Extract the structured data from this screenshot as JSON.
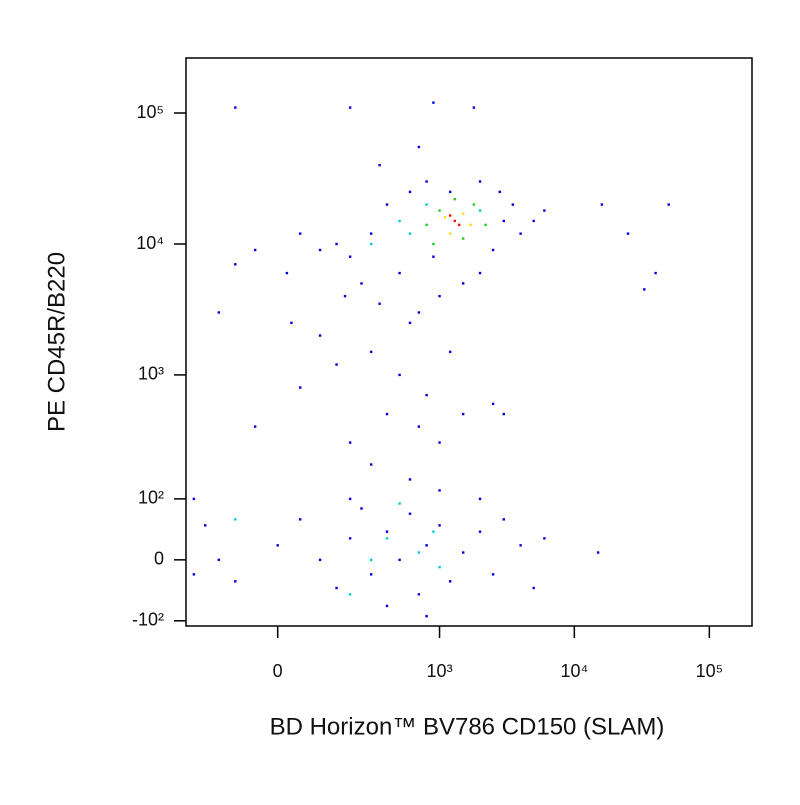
{
  "chart_data": {
    "type": "scatter",
    "x_label": "BD Horizon™ BV786 CD150 (SLAM)",
    "y_label": "PE CD45R/B220",
    "xscale": "biexponential",
    "yscale": "biexponential",
    "xlim": [
      -290,
      207000
    ],
    "ylim": [
      -112,
      263000
    ],
    "xticks": [
      0,
      {
        "value": 1000,
        "label": "10³"
      },
      {
        "value": 10000,
        "label": "10⁴"
      },
      {
        "value": 100000,
        "label": "10⁵"
      }
    ],
    "yticks": [
      {
        "value": -100,
        "label": "-10²"
      },
      0,
      {
        "value": 100,
        "label": "10²"
      },
      {
        "value": 1000,
        "label": "10³"
      },
      {
        "value": 10000,
        "label": "10⁴"
      },
      {
        "value": 100000,
        "label": "10⁵"
      }
    ],
    "series": [
      {
        "color": "#0000dd",
        "x": [
          200,
          300,
          150,
          400,
          500,
          250,
          600,
          800,
          2500,
          3000,
          4000,
          3500,
          2000,
          1500,
          1000,
          700,
          100,
          50,
          -50,
          -100,
          20,
          180,
          350,
          900,
          1200,
          2000,
          2800,
          5000,
          6000,
          16000,
          25000,
          40000,
          50000,
          33000,
          350,
          700,
          900,
          1800,
          -100,
          200,
          100,
          300,
          500,
          800,
          1500,
          2500,
          50,
          -50,
          200,
          400,
          700,
          1000,
          3000,
          150,
          600,
          1200,
          30,
          -150,
          -200,
          -150,
          -100,
          0,
          50,
          100,
          150,
          200,
          250,
          300,
          400,
          500,
          600,
          700,
          800,
          1000,
          1200,
          1500,
          2000,
          2500,
          3000,
          4000,
          5000,
          6000,
          15000,
          800,
          400,
          200,
          1000,
          -250,
          -250,
          2000,
          600,
          300
        ],
        "y": [
          8000,
          12000,
          10000,
          20000,
          6000,
          5000,
          25000,
          30000,
          9000,
          15000,
          12000,
          20000,
          6000,
          5000,
          4000,
          3000,
          9000,
          12000,
          9000,
          7000,
          6000,
          4000,
          3500,
          8000,
          25000,
          30000,
          25000,
          15000,
          18000,
          20000,
          12000,
          6000,
          20000,
          4500,
          40000,
          55000,
          120000,
          110000,
          110000,
          110000,
          2000,
          1500,
          1000,
          700,
          500,
          600,
          800,
          400,
          300,
          500,
          400,
          300,
          500,
          1200,
          2500,
          1500,
          2500,
          3000,
          50,
          0,
          -30,
          20,
          60,
          0,
          -40,
          30,
          80,
          -20,
          40,
          0,
          70,
          -50,
          20,
          50,
          -30,
          10,
          40,
          -20,
          60,
          20,
          -40,
          30,
          10,
          -90,
          -70,
          100,
          120,
          100,
          -20,
          100,
          150,
          200
        ]
      },
      {
        "color": "#00cccc",
        "x": [
          300,
          500,
          600,
          400,
          700,
          900,
          300,
          1000,
          200,
          -100,
          500,
          2000,
          800
        ],
        "y": [
          10000,
          15000,
          12000,
          30,
          10,
          40,
          0,
          -10,
          -50,
          60,
          90,
          18000,
          20000
        ]
      },
      {
        "color": "#22cc22",
        "x": [
          800,
          1000,
          1500,
          1800,
          900,
          2200,
          1300
        ],
        "y": [
          14000,
          18000,
          11000,
          20000,
          10000,
          14000,
          22000
        ]
      },
      {
        "color": "#ffdd00",
        "x": [
          1100,
          1500,
          1200,
          1700
        ],
        "y": [
          16000,
          17000,
          12000,
          14000
        ]
      },
      {
        "color": "#ee1100",
        "x": [
          1300,
          1400,
          1200
        ],
        "y": [
          15000,
          14000,
          16500
        ]
      }
    ]
  }
}
